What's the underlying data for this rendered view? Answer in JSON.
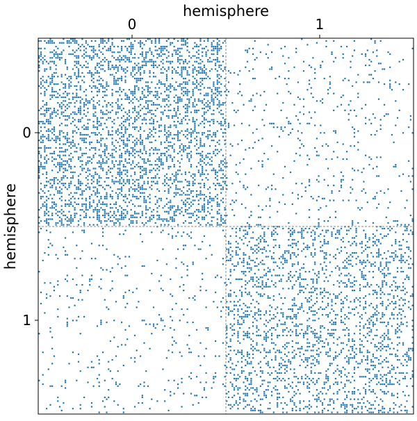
{
  "chart_data": {
    "type": "scatter",
    "subtype": "adjacency-matrix-spy-plot",
    "title": "",
    "xlabel": "hemisphere",
    "ylabel": "hemisphere",
    "x_ticks": [
      "0",
      "1"
    ],
    "y_ticks": [
      "0",
      "1"
    ],
    "x_axis_position": "top",
    "grid": false,
    "dividers": "dashed lines separating hemisphere blocks",
    "marker_color": "#1f77b4",
    "blocks": [
      {
        "row": "0",
        "col": "0",
        "density": "high"
      },
      {
        "row": "0",
        "col": "1",
        "density": "low"
      },
      {
        "row": "1",
        "col": "0",
        "density": "low"
      },
      {
        "row": "1",
        "col": "1",
        "density": "medium"
      }
    ],
    "block_densities": [
      [
        0.3,
        0.045
      ],
      [
        0.035,
        0.21
      ]
    ]
  }
}
